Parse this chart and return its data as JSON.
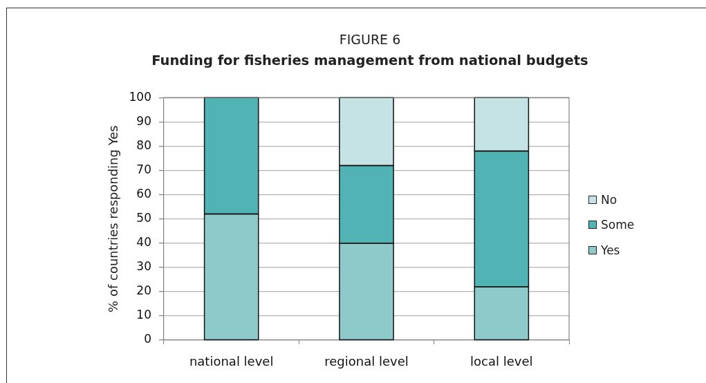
{
  "chart_data": {
    "type": "bar",
    "subtitle": "FIGURE 6",
    "title": "Funding for fisheries management from national budgets",
    "ylabel": "% of countries responding Yes",
    "categories": [
      "national level",
      "regional level",
      "local level"
    ],
    "series": [
      {
        "name": "Yes",
        "color": "#8fcacb",
        "values": [
          52,
          40,
          22
        ]
      },
      {
        "name": "Some",
        "color": "#52b3b4",
        "values": [
          48,
          32,
          56
        ]
      },
      {
        "name": "No",
        "color": "#c5e2e4",
        "values": [
          0,
          28,
          22
        ]
      }
    ],
    "stacked": true,
    "ylim": [
      0,
      100
    ],
    "yticks": [
      0,
      10,
      20,
      30,
      40,
      50,
      60,
      70,
      80,
      90,
      100
    ],
    "grid": "y",
    "legend": "right"
  }
}
